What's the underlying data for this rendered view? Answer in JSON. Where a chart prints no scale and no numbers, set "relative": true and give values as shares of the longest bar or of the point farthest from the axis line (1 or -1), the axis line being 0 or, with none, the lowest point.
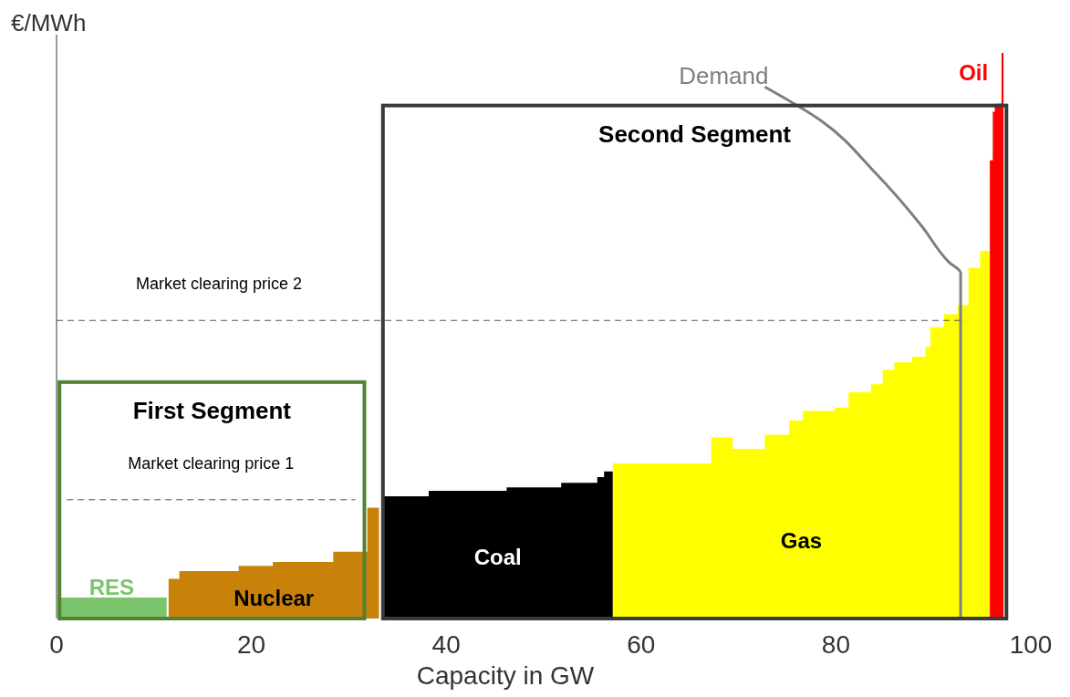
{
  "chart_data": {
    "type": "area",
    "relative": true,
    "xlabel": "Capacity in GW",
    "ylabel": "€/MWh",
    "xlim": [
      0,
      100
    ],
    "xticks": [
      0,
      20,
      40,
      60,
      80,
      100
    ],
    "annotations": [
      "First Segment",
      "Second Segment"
    ],
    "series": [
      {
        "name": "RES",
        "color": "#7cc46c",
        "x": [
          0,
          11.3
        ],
        "values": [
          0.037,
          0.037
        ]
      },
      {
        "name": "Nuclear",
        "color": "#c8820a",
        "x": [
          11.5,
          12.6,
          18.7,
          22.2,
          28.4,
          30.7,
          31.9,
          33.1
        ],
        "values": [
          0.07,
          0.084,
          0.093,
          0.1,
          0.118,
          0.118,
          0.196,
          0.196
        ]
      },
      {
        "name": "Coal",
        "color": "#000000",
        "x": [
          33.5,
          38.2,
          46.2,
          51.8,
          55.5,
          56.2,
          57.1
        ],
        "values": [
          0.216,
          0.226,
          0.232,
          0.24,
          0.25,
          0.26,
          0.26
        ]
      },
      {
        "name": "Gas",
        "color": "#ffff00",
        "x": [
          57.1,
          67.2,
          69.4,
          72.7,
          75.2,
          76.6,
          79.9,
          81.3,
          83.6,
          84.8,
          86,
          87.8,
          89.2,
          89.7,
          91.1,
          92.5,
          93.6,
          94.8,
          95.8
        ],
        "values": [
          0.274,
          0.32,
          0.3,
          0.325,
          0.35,
          0.367,
          0.373,
          0.4,
          0.414,
          0.44,
          0.453,
          0.463,
          0.48,
          0.515,
          0.538,
          0.554,
          0.62,
          0.65,
          0.65
        ]
      },
      {
        "name": "Oil",
        "color": "#ff0000",
        "x": [
          95.8,
          96.1,
          96.3,
          97,
          97.2
        ],
        "values": [
          0.81,
          0.896,
          0.91,
          1.0,
          1.0
        ]
      },
      {
        "name": "Demand",
        "type": "line",
        "color": "#7f7f7f",
        "x": [
          72.7,
          78.5,
          84.1,
          88.8,
          91.6,
          92.8,
          92.8
        ],
        "values": [
          0.94,
          0.88,
          0.787,
          0.694,
          0.63,
          0.611,
          0
        ]
      }
    ],
    "ref_lines": [
      {
        "axis": "y",
        "value": 0.21,
        "label": "Market clearing price 1",
        "color": "#555555",
        "line_style": "dashed"
      },
      {
        "axis": "y",
        "value": 0.527,
        "label": "Market clearing price 2",
        "color": "#555555",
        "line_style": "dashed"
      }
    ]
  }
}
